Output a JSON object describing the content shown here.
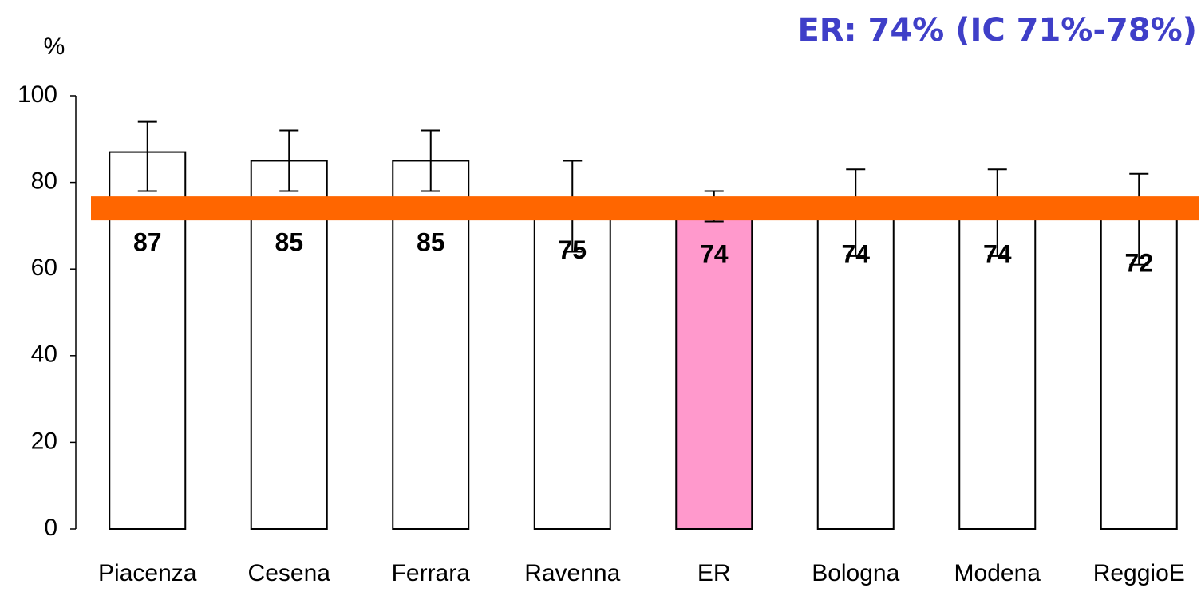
{
  "chart_data": {
    "type": "bar",
    "title": "ER: 74% (IC 71%-78%)",
    "y_label": "%",
    "categories": [
      "Piacenza",
      "Cesena",
      "Ferrara",
      "Ravenna",
      "ER",
      "Bologna",
      "Modena",
      "ReggioE"
    ],
    "values": [
      87,
      85,
      85,
      75,
      74,
      74,
      74,
      72
    ],
    "ci_low": [
      78,
      78,
      78,
      64,
      71,
      63,
      63,
      61
    ],
    "ci_high": [
      94,
      92,
      92,
      85,
      78,
      83,
      83,
      82
    ],
    "colors": [
      "#ffffff",
      "#ffffff",
      "#ffffff",
      "#ffffff",
      "#ff99cc",
      "#ffffff",
      "#ffffff",
      "#ffffff"
    ],
    "reference_line": {
      "value": 74,
      "color": "#ff6600"
    },
    "title_color": "#3f3fc8",
    "ylim": [
      0,
      100
    ],
    "yticks": [
      0,
      20,
      40,
      60,
      80,
      100
    ],
    "grid": false
  }
}
